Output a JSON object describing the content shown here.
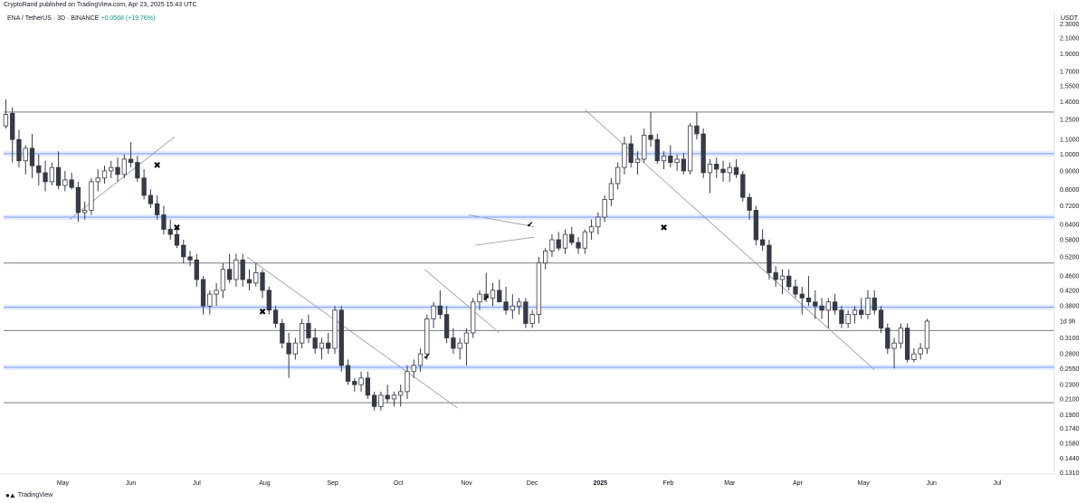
{
  "header": {
    "published": "CryptoRand published on TradingView.com, Apr 23, 2025 15:43 UTC",
    "symbol": "ENA / TetherUS · 3D · BINANCE",
    "change": "+0.0568 (+19.76%)",
    "axis_unit": "USDT",
    "countdown": "1d 9h"
  },
  "footer": {
    "brand": "TradingView",
    "logo_icon": "tradingview-logo-icon"
  },
  "colors": {
    "up": "#ffffff",
    "down": "#363a45",
    "wick": "#363a45",
    "level": "#787b86",
    "zone": "#2962ff"
  },
  "chart_data": {
    "type": "candlestick",
    "scale": "log",
    "ylim": [
      0.13,
      2.5
    ],
    "y_ticks": [
      "2.3000",
      "2.1000",
      "1.9000",
      "1.7000",
      "1.5500",
      "1.4000",
      "1.2500",
      "1.1000",
      "1.0000",
      "0.9000",
      "0.8000",
      "0.7200",
      "0.6400",
      "0.5800",
      "0.5200",
      "0.4600",
      "0.4200",
      "0.3800",
      "0.3100",
      "0.2800",
      "0.2550",
      "0.2300",
      "0.2100",
      "0.1900",
      "0.1740",
      "0.1580",
      "0.1440",
      "0.1310"
    ],
    "x_ticks": [
      {
        "label": "May",
        "date": "2024-05-01"
      },
      {
        "label": "Jun",
        "date": "2024-06-01"
      },
      {
        "label": "Jul",
        "date": "2024-07-01"
      },
      {
        "label": "Aug",
        "date": "2024-08-01"
      },
      {
        "label": "Sep",
        "date": "2024-09-01"
      },
      {
        "label": "Oct",
        "date": "2024-10-01"
      },
      {
        "label": "Nov",
        "date": "2024-11-01"
      },
      {
        "label": "Dec",
        "date": "2024-12-01"
      },
      {
        "label": "2025",
        "date": "2025-01-01",
        "bold": true
      },
      {
        "label": "Feb",
        "date": "2025-02-01"
      },
      {
        "label": "Mar",
        "date": "2025-03-01"
      },
      {
        "label": "Apr",
        "date": "2025-04-01"
      },
      {
        "label": "May",
        "date": "2025-05-01"
      },
      {
        "label": "Jun",
        "date": "2025-06-01"
      },
      {
        "label": "Jul",
        "date": "2025-07-01"
      }
    ],
    "x_range": [
      "2024-04-04",
      "2025-07-27"
    ],
    "candle_start": "2024-04-05",
    "candle_days": 3,
    "horizontal_levels": [
      1.31,
      0.5,
      0.325,
      0.205
    ],
    "zones": [
      1.005,
      0.67,
      0.377,
      0.257
    ],
    "candles": [
      [
        1.2,
        1.42,
        1.18,
        1.29
      ],
      [
        1.3,
        1.35,
        0.95,
        1.1
      ],
      [
        1.1,
        1.17,
        0.92,
        0.96
      ],
      [
        0.96,
        1.06,
        0.88,
        1.04
      ],
      [
        1.04,
        1.14,
        0.86,
        0.93
      ],
      [
        0.93,
        1.0,
        0.82,
        0.89
      ],
      [
        0.89,
        0.96,
        0.79,
        0.84
      ],
      [
        0.84,
        0.95,
        0.82,
        0.92
      ],
      [
        0.92,
        1.02,
        0.8,
        0.82
      ],
      [
        0.82,
        0.9,
        0.79,
        0.85
      ],
      [
        0.85,
        0.89,
        0.8,
        0.81
      ],
      [
        0.81,
        0.84,
        0.65,
        0.69
      ],
      [
        0.69,
        0.74,
        0.66,
        0.7
      ],
      [
        0.7,
        0.86,
        0.68,
        0.84
      ],
      [
        0.84,
        0.91,
        0.79,
        0.86
      ],
      [
        0.86,
        0.93,
        0.83,
        0.9
      ],
      [
        0.9,
        0.96,
        0.86,
        0.92
      ],
      [
        0.92,
        0.98,
        0.84,
        0.88
      ],
      [
        0.88,
        1.0,
        0.86,
        0.97
      ],
      [
        0.97,
        1.08,
        0.92,
        0.95
      ],
      [
        0.95,
        0.99,
        0.84,
        0.86
      ],
      [
        0.86,
        0.91,
        0.75,
        0.77
      ],
      [
        0.77,
        0.8,
        0.71,
        0.73
      ],
      [
        0.73,
        0.77,
        0.66,
        0.68
      ],
      [
        0.68,
        0.72,
        0.6,
        0.62
      ],
      [
        0.62,
        0.66,
        0.58,
        0.6
      ],
      [
        0.6,
        0.63,
        0.55,
        0.56
      ],
      [
        0.56,
        0.58,
        0.5,
        0.52
      ],
      [
        0.52,
        0.54,
        0.49,
        0.51
      ],
      [
        0.51,
        0.53,
        0.43,
        0.45
      ],
      [
        0.45,
        0.46,
        0.36,
        0.38
      ],
      [
        0.38,
        0.42,
        0.36,
        0.41
      ],
      [
        0.41,
        0.44,
        0.38,
        0.42
      ],
      [
        0.42,
        0.5,
        0.4,
        0.48
      ],
      [
        0.48,
        0.53,
        0.44,
        0.45
      ],
      [
        0.45,
        0.53,
        0.43,
        0.51
      ],
      [
        0.51,
        0.53,
        0.43,
        0.45
      ],
      [
        0.45,
        0.48,
        0.42,
        0.44
      ],
      [
        0.44,
        0.5,
        0.43,
        0.47
      ],
      [
        0.47,
        0.48,
        0.4,
        0.42
      ],
      [
        0.42,
        0.43,
        0.36,
        0.37
      ],
      [
        0.37,
        0.38,
        0.33,
        0.34
      ],
      [
        0.34,
        0.35,
        0.29,
        0.3
      ],
      [
        0.3,
        0.32,
        0.24,
        0.28
      ],
      [
        0.28,
        0.31,
        0.27,
        0.3
      ],
      [
        0.3,
        0.35,
        0.29,
        0.34
      ],
      [
        0.34,
        0.36,
        0.3,
        0.31
      ],
      [
        0.31,
        0.33,
        0.28,
        0.29
      ],
      [
        0.29,
        0.31,
        0.27,
        0.3
      ],
      [
        0.3,
        0.32,
        0.28,
        0.29
      ],
      [
        0.29,
        0.38,
        0.28,
        0.37
      ],
      [
        0.37,
        0.38,
        0.25,
        0.26
      ],
      [
        0.26,
        0.27,
        0.23,
        0.235
      ],
      [
        0.235,
        0.24,
        0.22,
        0.23
      ],
      [
        0.23,
        0.25,
        0.22,
        0.24
      ],
      [
        0.24,
        0.25,
        0.21,
        0.215
      ],
      [
        0.215,
        0.22,
        0.195,
        0.2
      ],
      [
        0.2,
        0.22,
        0.195,
        0.215
      ],
      [
        0.215,
        0.23,
        0.205,
        0.21
      ],
      [
        0.21,
        0.22,
        0.2,
        0.215
      ],
      [
        0.215,
        0.23,
        0.2,
        0.22
      ],
      [
        0.22,
        0.26,
        0.21,
        0.25
      ],
      [
        0.25,
        0.27,
        0.24,
        0.26
      ],
      [
        0.26,
        0.29,
        0.25,
        0.28
      ],
      [
        0.28,
        0.36,
        0.27,
        0.35
      ],
      [
        0.35,
        0.39,
        0.33,
        0.38
      ],
      [
        0.38,
        0.42,
        0.35,
        0.36
      ],
      [
        0.36,
        0.38,
        0.3,
        0.31
      ],
      [
        0.31,
        0.33,
        0.28,
        0.29
      ],
      [
        0.29,
        0.31,
        0.27,
        0.3
      ],
      [
        0.3,
        0.33,
        0.26,
        0.32
      ],
      [
        0.32,
        0.4,
        0.31,
        0.39
      ],
      [
        0.39,
        0.42,
        0.37,
        0.41
      ],
      [
        0.41,
        0.47,
        0.39,
        0.4
      ],
      [
        0.4,
        0.44,
        0.38,
        0.42
      ],
      [
        0.42,
        0.45,
        0.39,
        0.39
      ],
      [
        0.39,
        0.43,
        0.36,
        0.37
      ],
      [
        0.37,
        0.41,
        0.35,
        0.38
      ],
      [
        0.38,
        0.4,
        0.36,
        0.39
      ],
      [
        0.39,
        0.4,
        0.33,
        0.34
      ],
      [
        0.34,
        0.37,
        0.33,
        0.36
      ],
      [
        0.36,
        0.52,
        0.34,
        0.5
      ],
      [
        0.5,
        0.55,
        0.48,
        0.54
      ],
      [
        0.54,
        0.6,
        0.52,
        0.58
      ],
      [
        0.58,
        0.61,
        0.54,
        0.55
      ],
      [
        0.55,
        0.62,
        0.53,
        0.6
      ],
      [
        0.6,
        0.63,
        0.56,
        0.57
      ],
      [
        0.57,
        0.59,
        0.53,
        0.55
      ],
      [
        0.55,
        0.62,
        0.53,
        0.61
      ],
      [
        0.61,
        0.66,
        0.58,
        0.63
      ],
      [
        0.63,
        0.69,
        0.6,
        0.67
      ],
      [
        0.67,
        0.77,
        0.65,
        0.75
      ],
      [
        0.75,
        0.86,
        0.72,
        0.83
      ],
      [
        0.83,
        0.95,
        0.8,
        0.92
      ],
      [
        0.92,
        1.12,
        0.88,
        1.07
      ],
      [
        1.07,
        1.13,
        0.92,
        0.95
      ],
      [
        0.95,
        1.02,
        0.88,
        0.97
      ],
      [
        0.97,
        1.18,
        0.95,
        1.13
      ],
      [
        1.13,
        1.31,
        1.05,
        1.1
      ],
      [
        1.1,
        1.14,
        0.94,
        0.96
      ],
      [
        0.96,
        1.02,
        0.91,
        0.99
      ],
      [
        0.99,
        1.06,
        0.92,
        0.95
      ],
      [
        0.95,
        1.0,
        0.9,
        0.97
      ],
      [
        0.97,
        1.01,
        0.88,
        0.9
      ],
      [
        0.9,
        1.22,
        0.88,
        1.2
      ],
      [
        1.2,
        1.31,
        1.1,
        1.14
      ],
      [
        1.14,
        1.18,
        0.86,
        0.89
      ],
      [
        0.89,
        0.97,
        0.78,
        0.94
      ],
      [
        0.94,
        0.98,
        0.86,
        0.91
      ],
      [
        0.91,
        0.96,
        0.84,
        0.89
      ],
      [
        0.89,
        0.95,
        0.84,
        0.92
      ],
      [
        0.92,
        0.97,
        0.86,
        0.88
      ],
      [
        0.88,
        0.9,
        0.74,
        0.76
      ],
      [
        0.76,
        0.78,
        0.66,
        0.7
      ],
      [
        0.7,
        0.72,
        0.56,
        0.58
      ],
      [
        0.58,
        0.62,
        0.54,
        0.56
      ],
      [
        0.56,
        0.58,
        0.45,
        0.47
      ],
      [
        0.47,
        0.49,
        0.43,
        0.45
      ],
      [
        0.45,
        0.48,
        0.41,
        0.46
      ],
      [
        0.46,
        0.48,
        0.42,
        0.43
      ],
      [
        0.43,
        0.45,
        0.4,
        0.41
      ],
      [
        0.41,
        0.43,
        0.36,
        0.4
      ],
      [
        0.4,
        0.46,
        0.38,
        0.39
      ],
      [
        0.39,
        0.42,
        0.35,
        0.38
      ],
      [
        0.38,
        0.4,
        0.35,
        0.37
      ],
      [
        0.37,
        0.4,
        0.33,
        0.39
      ],
      [
        0.39,
        0.41,
        0.36,
        0.37
      ],
      [
        0.37,
        0.38,
        0.33,
        0.34
      ],
      [
        0.34,
        0.37,
        0.33,
        0.36
      ],
      [
        0.36,
        0.38,
        0.34,
        0.37
      ],
      [
        0.37,
        0.4,
        0.35,
        0.36
      ],
      [
        0.36,
        0.42,
        0.35,
        0.4
      ],
      [
        0.4,
        0.42,
        0.36,
        0.37
      ],
      [
        0.37,
        0.38,
        0.32,
        0.33
      ],
      [
        0.33,
        0.34,
        0.28,
        0.29
      ],
      [
        0.29,
        0.31,
        0.255,
        0.3
      ],
      [
        0.3,
        0.34,
        0.29,
        0.33
      ],
      [
        0.33,
        0.34,
        0.265,
        0.27
      ],
      [
        0.27,
        0.29,
        0.265,
        0.28
      ],
      [
        0.28,
        0.3,
        0.27,
        0.29
      ],
      [
        0.29,
        0.35,
        0.28,
        0.345
      ]
    ],
    "markers": [
      {
        "type": "cross",
        "date": "2024-06-13",
        "price": 0.93
      },
      {
        "type": "cross",
        "date": "2024-06-22",
        "price": 0.625
      },
      {
        "type": "cross",
        "date": "2024-07-31",
        "price": 0.365
      },
      {
        "type": "cross",
        "date": "2025-01-30",
        "price": 0.625
      },
      {
        "type": "check",
        "date": "2024-10-14",
        "price": 0.275
      },
      {
        "type": "check",
        "date": "2024-11-10",
        "price": 0.4
      },
      {
        "type": "check",
        "date": "2024-11-30",
        "price": 0.64
      }
    ],
    "trendlines": [
      [
        [
          "2024-05-04",
          0.66
        ],
        [
          "2024-06-21",
          1.12
        ]
      ],
      [
        [
          "2024-07-24",
          0.52
        ],
        [
          "2024-10-28",
          0.198
        ]
      ],
      [
        [
          "2024-10-13",
          0.48
        ],
        [
          "2024-11-16",
          0.32
        ]
      ],
      [
        [
          "2024-11-02",
          0.68
        ],
        [
          "2024-12-02",
          0.63
        ]
      ],
      [
        [
          "2024-11-05",
          0.56
        ],
        [
          "2024-12-02",
          0.59
        ]
      ],
      [
        [
          "2024-12-25",
          1.33
        ],
        [
          "2025-05-06",
          0.253
        ]
      ]
    ]
  }
}
